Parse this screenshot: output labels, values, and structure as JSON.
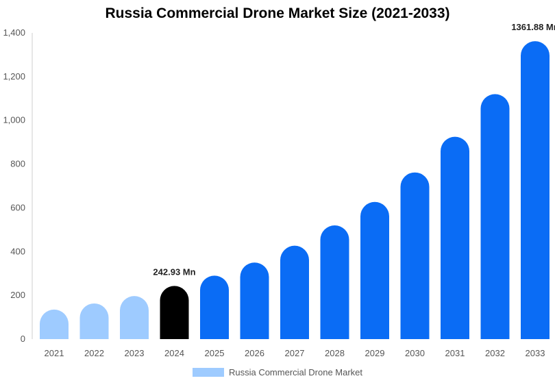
{
  "chart_data": {
    "type": "bar",
    "title": "Russia Commercial Drone Market Size (2021-2033)",
    "categories": [
      "2021",
      "2022",
      "2023",
      "2024",
      "2025",
      "2026",
      "2027",
      "2028",
      "2029",
      "2030",
      "2031",
      "2032",
      "2033"
    ],
    "series": [
      {
        "name": "Russia Commercial Drone Market",
        "values": [
          135,
          163,
          197,
          242.93,
          290,
          350,
          427,
          520,
          627,
          762,
          925,
          1120,
          1361.88
        ]
      }
    ],
    "ylim": [
      0,
      1400
    ],
    "yticks": [
      0,
      200,
      400,
      600,
      800,
      1000,
      1200,
      1400
    ],
    "ytick_labels": [
      "0",
      "200",
      "400",
      "600",
      "800",
      "1,000",
      "1,200",
      "1,400"
    ],
    "data_labels": [
      {
        "category": "2024",
        "text": "242.93 Mn"
      },
      {
        "category": "2033",
        "text": "1361.88 Mn"
      }
    ],
    "colors": {
      "historical": "#9ecbff",
      "current": "#000000",
      "forecast": "#0a6cf5"
    },
    "historical_categories": [
      "2021",
      "2022",
      "2023"
    ],
    "current_category": "2024",
    "legend_position": "bottom",
    "grid": false
  }
}
